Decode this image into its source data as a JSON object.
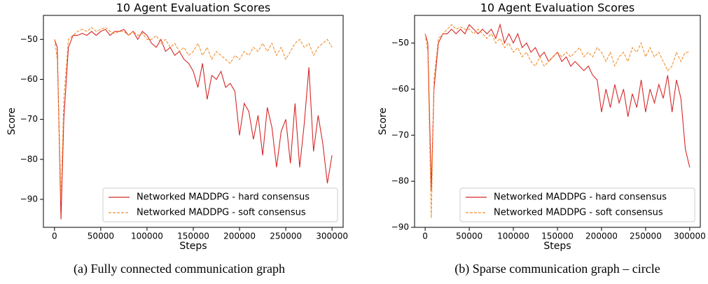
{
  "chart_data": [
    {
      "type": "line",
      "title": "10 Agent Evaluation Scores",
      "xlabel": "Steps",
      "ylabel": "Score",
      "caption": "(a) Fully connected communication graph",
      "x": [
        0,
        3000,
        7000,
        10000,
        15000,
        20000,
        25000,
        30000,
        35000,
        40000,
        45000,
        50000,
        55000,
        60000,
        65000,
        70000,
        75000,
        80000,
        85000,
        90000,
        95000,
        100000,
        105000,
        110000,
        115000,
        120000,
        125000,
        130000,
        135000,
        140000,
        145000,
        150000,
        155000,
        160000,
        165000,
        170000,
        175000,
        180000,
        185000,
        190000,
        195000,
        200000,
        205000,
        210000,
        215000,
        220000,
        225000,
        230000,
        235000,
        240000,
        245000,
        250000,
        255000,
        260000,
        265000,
        270000,
        275000,
        280000,
        285000,
        290000,
        295000,
        300000
      ],
      "series": [
        {
          "name": "Networked MADDPG - hard consensus",
          "color": "#d62728",
          "linestyle": "solid",
          "values": [
            -50,
            -52,
            -95,
            -70,
            -52,
            -49,
            -49,
            -48.5,
            -49,
            -48,
            -49,
            -48,
            -47.5,
            -49,
            -48,
            -48,
            -47.5,
            -49,
            -48,
            -50,
            -48,
            -49,
            -51,
            -52,
            -50,
            -53,
            -52,
            -54,
            -53,
            -55,
            -56,
            -58,
            -62,
            -56,
            -65,
            -59,
            -60,
            -58,
            -62,
            -61,
            -63,
            -74,
            -66,
            -68,
            -75,
            -69,
            -79,
            -67,
            -72,
            -82,
            -73,
            -70,
            -81,
            -66,
            -82,
            -71,
            -57,
            -78,
            -69,
            -76,
            -86,
            -79
          ]
        },
        {
          "name": "Networked MADDPG - soft consensus",
          "color": "#f28e2b",
          "linestyle": "dashed",
          "values": [
            -50,
            -55,
            -90,
            -65,
            -50,
            -49,
            -48,
            -47.5,
            -48,
            -47,
            -48,
            -47.5,
            -47,
            -48,
            -48.5,
            -48,
            -48,
            -49,
            -48,
            -49,
            -48.5,
            -50,
            -50,
            -49,
            -51,
            -50,
            -52,
            -51,
            -53,
            -52,
            -54,
            -53,
            -51,
            -54,
            -52,
            -55,
            -53,
            -54,
            -55,
            -56,
            -54,
            -55,
            -53,
            -54,
            -52,
            -53,
            -51,
            -53,
            -51,
            -54,
            -52,
            -55,
            -53,
            -51,
            -50,
            -52,
            -51,
            -54,
            -52,
            -51,
            -50,
            -52
          ]
        }
      ],
      "xlim": [
        -12000,
        312000
      ],
      "xticks": [
        0,
        50000,
        100000,
        150000,
        200000,
        250000,
        300000
      ],
      "ylim": [
        -97,
        -44
      ],
      "yticks": [
        {
          "value": -90,
          "label": "−90"
        },
        {
          "value": -80,
          "label": "−80"
        },
        {
          "value": -70,
          "label": "−70"
        },
        {
          "value": -60,
          "label": "−60"
        },
        {
          "value": -50,
          "label": "−50"
        }
      ],
      "grid": false,
      "legend": "lower right"
    },
    {
      "type": "line",
      "title": "10 Agent Evaluation Scores",
      "xlabel": "Steps",
      "ylabel": "Score",
      "caption": "(b) Sparse communication graph – circle",
      "x": [
        0,
        3000,
        7000,
        10000,
        15000,
        20000,
        25000,
        30000,
        35000,
        40000,
        45000,
        50000,
        55000,
        60000,
        65000,
        70000,
        75000,
        80000,
        85000,
        90000,
        95000,
        100000,
        105000,
        110000,
        115000,
        120000,
        125000,
        130000,
        135000,
        140000,
        145000,
        150000,
        155000,
        160000,
        165000,
        170000,
        175000,
        180000,
        185000,
        190000,
        195000,
        200000,
        205000,
        210000,
        215000,
        220000,
        225000,
        230000,
        235000,
        240000,
        245000,
        250000,
        255000,
        260000,
        265000,
        270000,
        275000,
        280000,
        285000,
        290000,
        295000,
        300000
      ],
      "series": [
        {
          "name": "Networked MADDPG - hard consensus",
          "color": "#d62728",
          "linestyle": "solid",
          "values": [
            -48,
            -50,
            -82,
            -60,
            -50,
            -48,
            -48,
            -47,
            -48,
            -47,
            -48,
            -46,
            -47,
            -48,
            -47,
            -48,
            -47,
            -49,
            -46,
            -50,
            -48,
            -50,
            -48,
            -51,
            -50,
            -52,
            -51,
            -53,
            -52,
            -54,
            -53,
            -52,
            -54,
            -53,
            -55,
            -54,
            -55,
            -56,
            -55,
            -57,
            -58,
            -65,
            -60,
            -64,
            -59,
            -63,
            -60,
            -66,
            -61,
            -64,
            -58,
            -65,
            -60,
            -63,
            -59,
            -62,
            -57,
            -65,
            -58,
            -62,
            -73,
            -77
          ]
        },
        {
          "name": "Networked MADDPG - soft consensus",
          "color": "#f28e2b",
          "linestyle": "dashed",
          "values": [
            -48,
            -52,
            -88,
            -58,
            -49,
            -48,
            -47,
            -46,
            -47,
            -46.5,
            -47,
            -47,
            -48,
            -47,
            -48,
            -49,
            -48,
            -50,
            -49,
            -51,
            -50,
            -52,
            -51,
            -53,
            -52,
            -54,
            -55,
            -53,
            -55,
            -54,
            -53,
            -52,
            -53,
            -52,
            -53,
            -52,
            -51,
            -53,
            -52,
            -53,
            -51,
            -52,
            -54,
            -52,
            -55,
            -53,
            -52,
            -54,
            -51,
            -52,
            -50,
            -53,
            -51,
            -53,
            -52,
            -54,
            -56,
            -55,
            -52,
            -54,
            -52,
            -52
          ]
        }
      ],
      "xlim": [
        -12000,
        312000
      ],
      "xticks": [
        0,
        50000,
        100000,
        150000,
        200000,
        250000,
        300000
      ],
      "ylim": [
        -90,
        -44
      ],
      "yticks": [
        {
          "value": -90,
          "label": "−90"
        },
        {
          "value": -80,
          "label": "−80"
        },
        {
          "value": -70,
          "label": "−70"
        },
        {
          "value": -60,
          "label": "−60"
        },
        {
          "value": -50,
          "label": "−50"
        }
      ],
      "grid": false,
      "legend": "lower right"
    }
  ]
}
